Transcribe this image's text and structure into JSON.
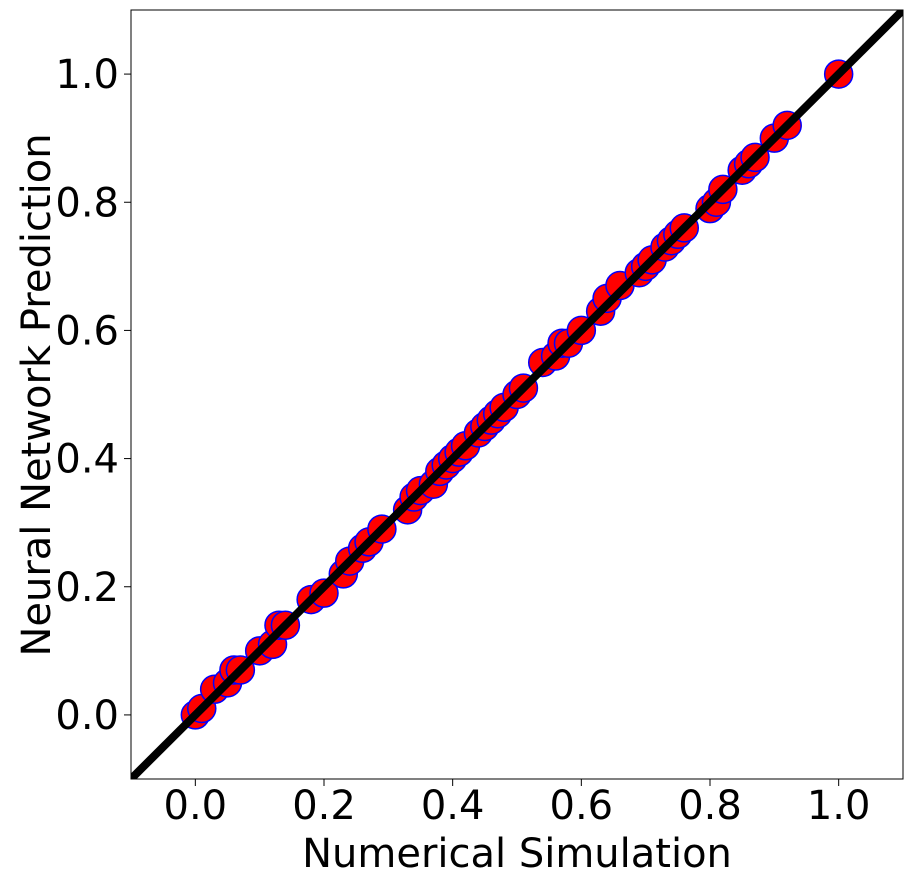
{
  "chart_data": {
    "type": "scatter",
    "x_label": "Numerical Simulation",
    "y_label": "Neural Network Prediction",
    "x": [
      0.0,
      0.01,
      0.03,
      0.05,
      0.06,
      0.07,
      0.1,
      0.12,
      0.13,
      0.14,
      0.18,
      0.2,
      0.23,
      0.24,
      0.26,
      0.27,
      0.29,
      0.33,
      0.34,
      0.35,
      0.37,
      0.38,
      0.39,
      0.4,
      0.41,
      0.42,
      0.44,
      0.45,
      0.46,
      0.47,
      0.48,
      0.5,
      0.51,
      0.54,
      0.56,
      0.57,
      0.58,
      0.6,
      0.63,
      0.64,
      0.66,
      0.69,
      0.7,
      0.71,
      0.73,
      0.74,
      0.75,
      0.76,
      0.8,
      0.81,
      0.82,
      0.85,
      0.86,
      0.87,
      0.9,
      0.92,
      1.0
    ],
    "y": [
      0.0,
      0.01,
      0.04,
      0.05,
      0.07,
      0.07,
      0.1,
      0.11,
      0.14,
      0.14,
      0.18,
      0.19,
      0.22,
      0.24,
      0.26,
      0.27,
      0.29,
      0.32,
      0.34,
      0.35,
      0.36,
      0.38,
      0.39,
      0.4,
      0.41,
      0.42,
      0.44,
      0.45,
      0.46,
      0.47,
      0.48,
      0.5,
      0.51,
      0.55,
      0.56,
      0.58,
      0.58,
      0.6,
      0.63,
      0.65,
      0.67,
      0.69,
      0.7,
      0.71,
      0.73,
      0.74,
      0.75,
      0.76,
      0.79,
      0.8,
      0.82,
      0.85,
      0.86,
      0.87,
      0.9,
      0.92,
      1.0
    ],
    "marker_color": "#ff0000",
    "marker_edge_color": "#0000ff",
    "line_color": "#000000",
    "xlim": [
      -0.1,
      1.1
    ],
    "ylim": [
      -0.1,
      1.1
    ],
    "xticks": [
      {
        "value": 0,
        "label": "0.0"
      },
      {
        "value": 0.2,
        "label": "0.2"
      },
      {
        "value": 0.4,
        "label": "0.4"
      },
      {
        "value": 0.6,
        "label": "0.6"
      },
      {
        "value": 0.8,
        "label": "0.8"
      },
      {
        "value": 1,
        "label": "1.0"
      }
    ],
    "yticks": [
      {
        "value": 0,
        "label": "0.0"
      },
      {
        "value": 0.2,
        "label": "0.2"
      },
      {
        "value": 0.4,
        "label": "0.4"
      },
      {
        "value": 0.6,
        "label": "0.6"
      },
      {
        "value": 0.8,
        "label": "0.8"
      },
      {
        "value": 1,
        "label": "1.0"
      }
    ]
  }
}
